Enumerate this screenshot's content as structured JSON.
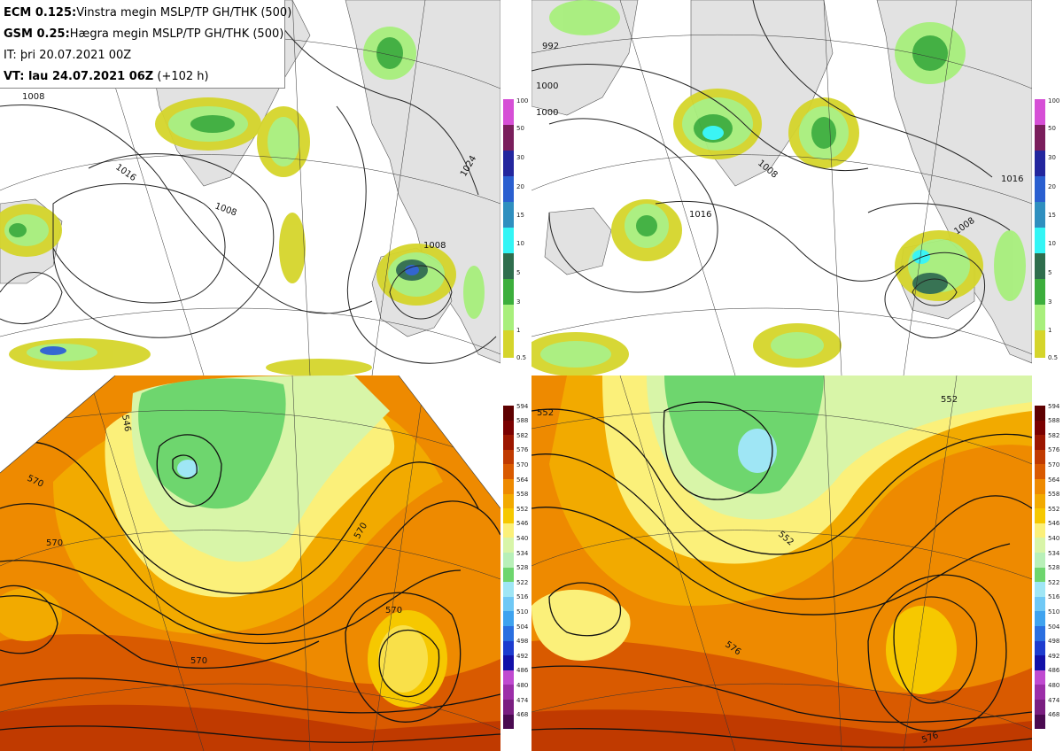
{
  "header": {
    "line1_bold": "ECM 0.125:",
    "line1_text": "Vinstra megin MSLP/TP GH/THK (500)",
    "line2_bold": "GSM 0.25:",
    "line2_text": "Hægra megin MSLP/TP GH/THK (500)",
    "line3_text": "IT: þri 20.07.2021 00Z",
    "line4_bold": "VT: lau 24.07.2021 06Z",
    "line4_text": " (+102 h)"
  },
  "precip_colorbar": {
    "labels": [
      "100",
      "50",
      "30",
      "20",
      "15",
      "10",
      "5",
      "3",
      "1",
      "0.5"
    ],
    "colors": [
      "#d64fd6",
      "#7a1e5c",
      "#23269e",
      "#2a5fd0",
      "#2f8fbf",
      "#33f5f5",
      "#2f6e4d",
      "#3cae3c",
      "#a8ef7c",
      "#d5d52b"
    ]
  },
  "height_colorbar": {
    "labels": [
      "594",
      "588",
      "582",
      "576",
      "570",
      "564",
      "558",
      "552",
      "546",
      "540",
      "534",
      "528",
      "522",
      "516",
      "510",
      "504",
      "498",
      "492",
      "486",
      "480",
      "474",
      "468"
    ],
    "colors": [
      "#5e0000",
      "#7a0000",
      "#9c1600",
      "#c03a00",
      "#d95a00",
      "#ee8a00",
      "#f2aa00",
      "#f6c800",
      "#fbf07a",
      "#d8f5a8",
      "#b8f0b8",
      "#6ed66e",
      "#9fe6f5",
      "#6fc8f5",
      "#3fa3ef",
      "#2a6fe0",
      "#1d3ccf",
      "#1210a8",
      "#c04ad0",
      "#9c2ea8",
      "#7a1e80",
      "#4a0a50"
    ]
  },
  "contour_labels": {
    "top_left": [
      "1008",
      "1016",
      "1008",
      "1008",
      "1024"
    ],
    "top_right": [
      "992",
      "1000",
      "1000",
      "1008",
      "1016",
      "1008",
      "1016"
    ],
    "bottom_left": [
      "546",
      "570",
      "570",
      "570",
      "570",
      "570"
    ],
    "bottom_right": [
      "552",
      "552",
      "552",
      "576",
      "576"
    ]
  }
}
